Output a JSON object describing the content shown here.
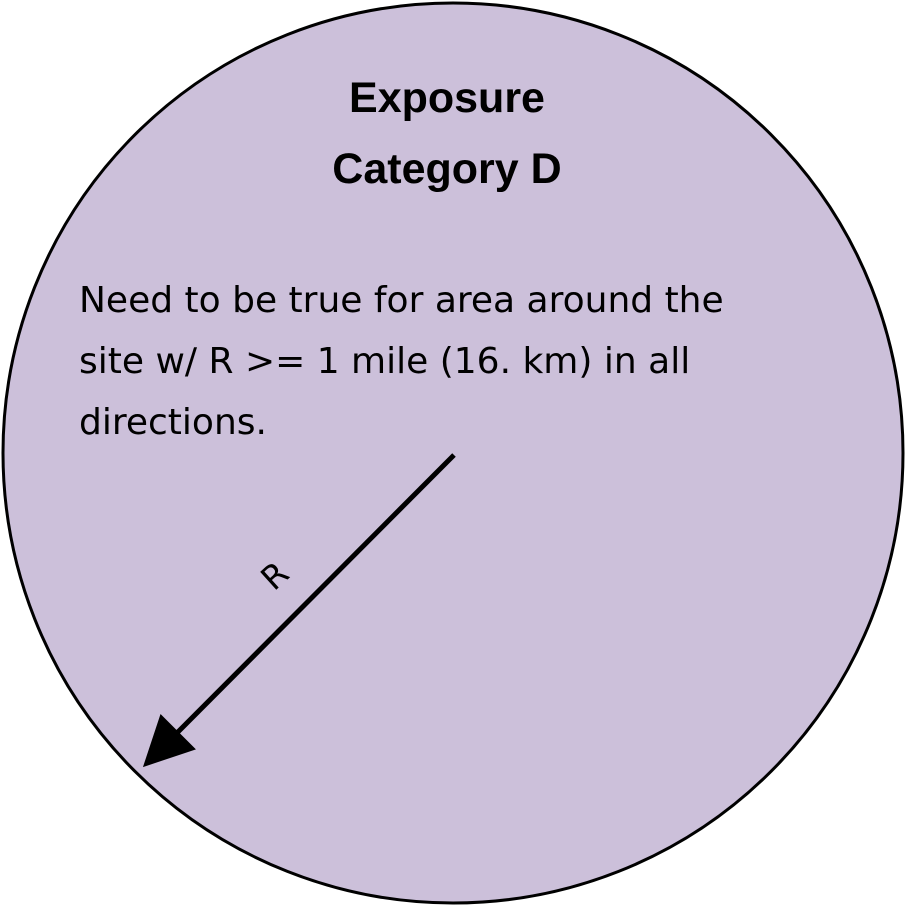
{
  "diagram": {
    "title_line1": "Exposure",
    "title_line2": "Category D",
    "description_lines": [
      "Need to be true for area around the",
      "site w/ R >= 1 mile (16. km) in all",
      "directions."
    ],
    "radius_label": "R",
    "circle_fill": "#ccc0da",
    "stroke_color": "#000000"
  }
}
